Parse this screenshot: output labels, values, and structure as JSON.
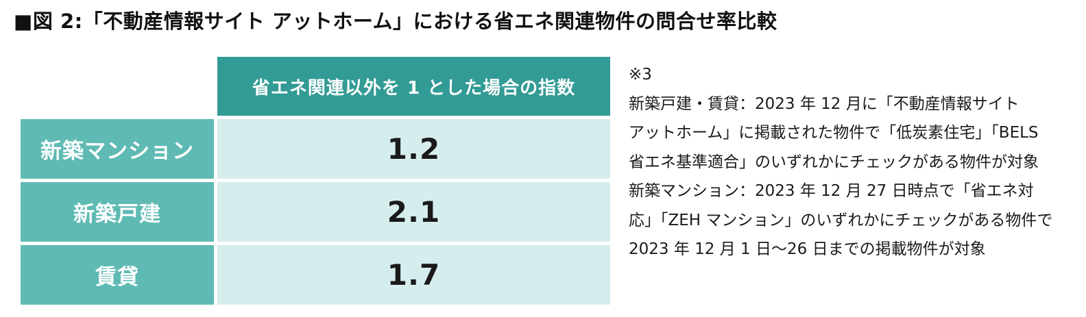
{
  "title": "■図 2:「不動産情報サイト アットホーム」における省エネ関連物件の問合せ率比較",
  "table": {
    "header": "省エネ関連以外を 1 とした場合の指数",
    "rows": [
      {
        "label": "新築マンション",
        "value": "1.2"
      },
      {
        "label": "新築戸建",
        "value": "2.1"
      },
      {
        "label": "賃貸",
        "value": "1.7"
      }
    ]
  },
  "notes": [
    "※3",
    "新築戸建・賃貸：2023 年 12 月に「不動産情報サイト",
    "アットホーム」に掲載された物件で「低炭素住宅」「BELS",
    "省エネ基準適合」のいずれかにチェックがある物件が対象",
    "新築マンション：2023 年 12 月 27 日時点で「省エネ対",
    "応」「ZEH マンション」のいずれかにチェックがある物件で",
    "2023 年 12 月 1 日～26 日までの掲載物件が対象"
  ],
  "colors": {
    "header_bg": "#339b95",
    "label_bg": "#5fbab4",
    "value_bg": "#d6eded"
  }
}
